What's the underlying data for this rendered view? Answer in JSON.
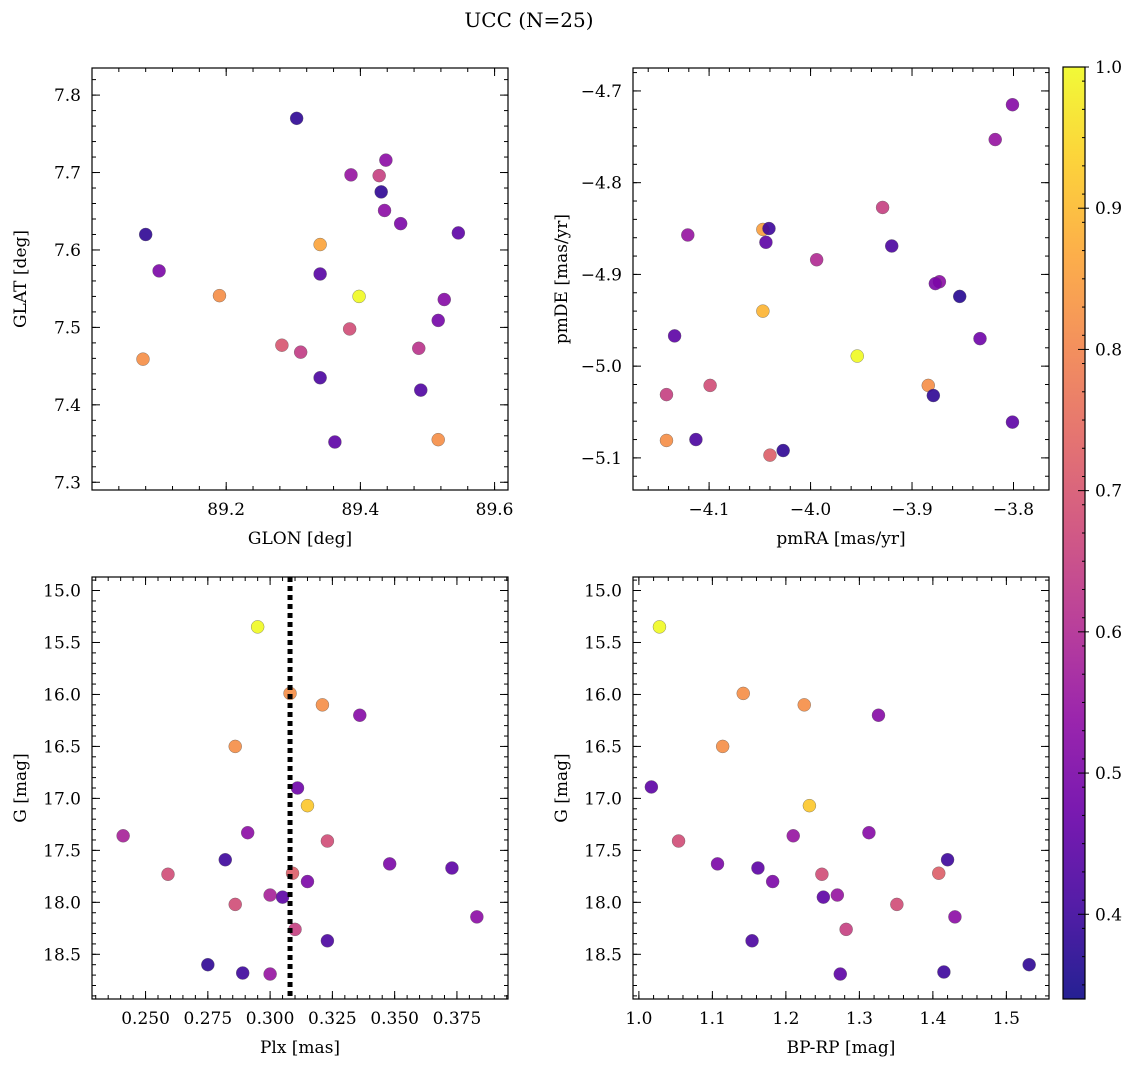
{
  "title": "UCC (N=25)",
  "colorbar": {
    "range": [
      0.34,
      1.0
    ],
    "tick_values": [
      0.4,
      0.5,
      0.6,
      0.7,
      0.8,
      0.9,
      1.0
    ],
    "tick_labels": [
      "0.4",
      "0.5",
      "0.6",
      "0.7",
      "0.8",
      "0.9",
      "1.0"
    ],
    "colormap": "plasma"
  },
  "colormap_stops": [
    "#0d0887",
    "#41049d",
    "#6a00a8",
    "#8f0da4",
    "#b12a90",
    "#cc4778",
    "#e16462",
    "#f2844b",
    "#fca636",
    "#fcce25",
    "#f0f921"
  ],
  "chart_data": [
    {
      "type": "scatter",
      "xlabel": "GLON [deg]",
      "ylabel": "GLAT [deg]",
      "xlim": [
        89.0,
        89.62
      ],
      "ylim": [
        7.29,
        7.835
      ],
      "x_ticks": [
        89.2,
        89.4,
        89.6
      ],
      "x_tick_labels": [
        "89.2",
        "89.4",
        "89.6"
      ],
      "y_ticks": [
        7.3,
        7.4,
        7.5,
        7.6,
        7.7,
        7.8
      ],
      "y_tick_labels": [
        "7.3",
        "7.4",
        "7.5",
        "7.6",
        "7.7",
        "7.8"
      ],
      "points": [
        {
          "x": 89.305,
          "y": 7.77,
          "c": 0.38
        },
        {
          "x": 89.08,
          "y": 7.62,
          "c": 0.38
        },
        {
          "x": 89.1,
          "y": 7.573,
          "c": 0.5
        },
        {
          "x": 89.076,
          "y": 7.459,
          "c": 0.82
        },
        {
          "x": 89.19,
          "y": 7.541,
          "c": 0.82
        },
        {
          "x": 89.283,
          "y": 7.477,
          "c": 0.7
        },
        {
          "x": 89.311,
          "y": 7.468,
          "c": 0.64
        },
        {
          "x": 89.34,
          "y": 7.435,
          "c": 0.42
        },
        {
          "x": 89.34,
          "y": 7.569,
          "c": 0.44
        },
        {
          "x": 89.34,
          "y": 7.607,
          "c": 0.86
        },
        {
          "x": 89.362,
          "y": 7.352,
          "c": 0.45
        },
        {
          "x": 89.384,
          "y": 7.498,
          "c": 0.68
        },
        {
          "x": 89.386,
          "y": 7.697,
          "c": 0.55
        },
        {
          "x": 89.398,
          "y": 7.54,
          "c": 1.0
        },
        {
          "x": 89.428,
          "y": 7.696,
          "c": 0.65
        },
        {
          "x": 89.431,
          "y": 7.675,
          "c": 0.38
        },
        {
          "x": 89.436,
          "y": 7.651,
          "c": 0.53
        },
        {
          "x": 89.438,
          "y": 7.716,
          "c": 0.53
        },
        {
          "x": 89.46,
          "y": 7.634,
          "c": 0.5
        },
        {
          "x": 89.487,
          "y": 7.473,
          "c": 0.62
        },
        {
          "x": 89.49,
          "y": 7.419,
          "c": 0.43
        },
        {
          "x": 89.516,
          "y": 7.355,
          "c": 0.82
        },
        {
          "x": 89.516,
          "y": 7.509,
          "c": 0.49
        },
        {
          "x": 89.525,
          "y": 7.536,
          "c": 0.52
        },
        {
          "x": 89.546,
          "y": 7.622,
          "c": 0.45
        }
      ]
    },
    {
      "type": "scatter",
      "xlabel": "pmRA [mas/yr]",
      "ylabel": "pmDE [mas/yr]",
      "xlim": [
        -4.175,
        -3.765
      ],
      "ylim": [
        -5.135,
        -4.675
      ],
      "x_ticks": [
        -4.1,
        -4.0,
        -3.9,
        -3.8
      ],
      "x_tick_labels": [
        "−4.1",
        "−4.0",
        "−3.9",
        "−3.8"
      ],
      "y_ticks": [
        -5.1,
        -5.0,
        -4.9,
        -4.8,
        -4.7
      ],
      "y_tick_labels": [
        "−5.1",
        "−5.0",
        "−4.9",
        "−4.8",
        "−4.7"
      ],
      "points": [
        {
          "x": -3.801,
          "y": -4.715,
          "c": 0.52
        },
        {
          "x": -3.818,
          "y": -4.753,
          "c": 0.55
        },
        {
          "x": -3.929,
          "y": -4.827,
          "c": 0.65
        },
        {
          "x": -4.121,
          "y": -4.857,
          "c": 0.55
        },
        {
          "x": -4.047,
          "y": -4.851,
          "c": 0.85
        },
        {
          "x": -4.041,
          "y": -4.85,
          "c": 0.4
        },
        {
          "x": -4.044,
          "y": -4.865,
          "c": 0.45
        },
        {
          "x": -3.92,
          "y": -4.869,
          "c": 0.42
        },
        {
          "x": -3.994,
          "y": -4.884,
          "c": 0.6
        },
        {
          "x": -3.873,
          "y": -4.908,
          "c": 0.53
        },
        {
          "x": -3.877,
          "y": -4.91,
          "c": 0.5
        },
        {
          "x": -3.853,
          "y": -4.924,
          "c": 0.37
        },
        {
          "x": -4.047,
          "y": -4.94,
          "c": 0.89
        },
        {
          "x": -4.134,
          "y": -4.967,
          "c": 0.45
        },
        {
          "x": -3.833,
          "y": -4.97,
          "c": 0.48
        },
        {
          "x": -3.954,
          "y": -4.989,
          "c": 1.0
        },
        {
          "x": -3.884,
          "y": -5.021,
          "c": 0.82
        },
        {
          "x": -4.099,
          "y": -5.021,
          "c": 0.68
        },
        {
          "x": -3.879,
          "y": -5.032,
          "c": 0.38
        },
        {
          "x": -4.142,
          "y": -5.031,
          "c": 0.65
        },
        {
          "x": -3.801,
          "y": -5.061,
          "c": 0.45
        },
        {
          "x": -4.142,
          "y": -5.081,
          "c": 0.82
        },
        {
          "x": -4.113,
          "y": -5.08,
          "c": 0.42
        },
        {
          "x": -4.027,
          "y": -5.092,
          "c": 0.38
        },
        {
          "x": -4.04,
          "y": -5.097,
          "c": 0.72
        }
      ]
    },
    {
      "type": "scatter",
      "xlabel": "Plx [mas]",
      "ylabel": "G [mag]",
      "xlim": [
        0.2285,
        0.3955
      ],
      "ylim": [
        18.93,
        14.87
      ],
      "x_ticks": [
        0.25,
        0.275,
        0.3,
        0.325,
        0.35,
        0.375
      ],
      "x_tick_labels": [
        "0.250",
        "0.275",
        "0.300",
        "0.325",
        "0.350",
        "0.375"
      ],
      "y_ticks": [
        15.0,
        15.5,
        16.0,
        16.5,
        17.0,
        17.5,
        18.0,
        18.5
      ],
      "y_tick_labels": [
        "15.0",
        "15.5",
        "16.0",
        "16.5",
        "17.0",
        "17.5",
        "18.0",
        "18.5"
      ],
      "vline_x": 0.308,
      "points": [
        {
          "x": 0.295,
          "y": 15.35,
          "c": 1.0
        },
        {
          "x": 0.308,
          "y": 15.99,
          "c": 0.82
        },
        {
          "x": 0.321,
          "y": 16.1,
          "c": 0.82
        },
        {
          "x": 0.336,
          "y": 16.2,
          "c": 0.52
        },
        {
          "x": 0.286,
          "y": 16.5,
          "c": 0.82
        },
        {
          "x": 0.311,
          "y": 16.9,
          "c": 0.48
        },
        {
          "x": 0.315,
          "y": 17.07,
          "c": 0.92
        },
        {
          "x": 0.241,
          "y": 17.36,
          "c": 0.58
        },
        {
          "x": 0.291,
          "y": 17.33,
          "c": 0.53
        },
        {
          "x": 0.323,
          "y": 17.41,
          "c": 0.68
        },
        {
          "x": 0.282,
          "y": 17.59,
          "c": 0.4
        },
        {
          "x": 0.348,
          "y": 17.63,
          "c": 0.5
        },
        {
          "x": 0.373,
          "y": 17.67,
          "c": 0.45
        },
        {
          "x": 0.259,
          "y": 17.73,
          "c": 0.68
        },
        {
          "x": 0.309,
          "y": 17.72,
          "c": 0.72
        },
        {
          "x": 0.315,
          "y": 17.8,
          "c": 0.5
        },
        {
          "x": 0.3,
          "y": 17.93,
          "c": 0.58
        },
        {
          "x": 0.305,
          "y": 17.95,
          "c": 0.45
        },
        {
          "x": 0.286,
          "y": 18.02,
          "c": 0.68
        },
        {
          "x": 0.383,
          "y": 18.14,
          "c": 0.53
        },
        {
          "x": 0.31,
          "y": 18.26,
          "c": 0.65
        },
        {
          "x": 0.323,
          "y": 18.37,
          "c": 0.42
        },
        {
          "x": 0.275,
          "y": 18.6,
          "c": 0.38
        },
        {
          "x": 0.289,
          "y": 18.68,
          "c": 0.4
        },
        {
          "x": 0.3,
          "y": 18.69,
          "c": 0.55
        }
      ]
    },
    {
      "type": "scatter",
      "xlabel": "BP-RP [mag]",
      "ylabel": "G [mag]",
      "xlim": [
        0.992,
        1.558
      ],
      "ylim": [
        18.93,
        14.87
      ],
      "x_ticks": [
        1.0,
        1.1,
        1.2,
        1.3,
        1.4,
        1.5
      ],
      "x_tick_labels": [
        "1.0",
        "1.1",
        "1.2",
        "1.3",
        "1.4",
        "1.5"
      ],
      "y_ticks": [
        15.0,
        15.5,
        16.0,
        16.5,
        17.0,
        17.5,
        18.0,
        18.5
      ],
      "y_tick_labels": [
        "15.0",
        "15.5",
        "16.0",
        "16.5",
        "17.0",
        "17.5",
        "18.0",
        "18.5"
      ],
      "points": [
        {
          "x": 1.028,
          "y": 15.35,
          "c": 1.0
        },
        {
          "x": 1.142,
          "y": 15.99,
          "c": 0.82
        },
        {
          "x": 1.225,
          "y": 16.1,
          "c": 0.82
        },
        {
          "x": 1.326,
          "y": 16.2,
          "c": 0.52
        },
        {
          "x": 1.114,
          "y": 16.5,
          "c": 0.82
        },
        {
          "x": 1.017,
          "y": 16.89,
          "c": 0.45
        },
        {
          "x": 1.232,
          "y": 17.07,
          "c": 0.92
        },
        {
          "x": 1.054,
          "y": 17.41,
          "c": 0.68
        },
        {
          "x": 1.21,
          "y": 17.36,
          "c": 0.55
        },
        {
          "x": 1.313,
          "y": 17.33,
          "c": 0.52
        },
        {
          "x": 1.107,
          "y": 17.63,
          "c": 0.5
        },
        {
          "x": 1.162,
          "y": 17.67,
          "c": 0.45
        },
        {
          "x": 1.42,
          "y": 17.59,
          "c": 0.4
        },
        {
          "x": 1.249,
          "y": 17.73,
          "c": 0.68
        },
        {
          "x": 1.408,
          "y": 17.72,
          "c": 0.72
        },
        {
          "x": 1.182,
          "y": 17.8,
          "c": 0.5
        },
        {
          "x": 1.27,
          "y": 17.93,
          "c": 0.55
        },
        {
          "x": 1.251,
          "y": 17.95,
          "c": 0.45
        },
        {
          "x": 1.351,
          "y": 18.02,
          "c": 0.68
        },
        {
          "x": 1.43,
          "y": 18.14,
          "c": 0.53
        },
        {
          "x": 1.282,
          "y": 18.26,
          "c": 0.65
        },
        {
          "x": 1.154,
          "y": 18.37,
          "c": 0.42
        },
        {
          "x": 1.531,
          "y": 18.6,
          "c": 0.38
        },
        {
          "x": 1.415,
          "y": 18.67,
          "c": 0.4
        },
        {
          "x": 1.274,
          "y": 18.69,
          "c": 0.45
        }
      ]
    }
  ]
}
